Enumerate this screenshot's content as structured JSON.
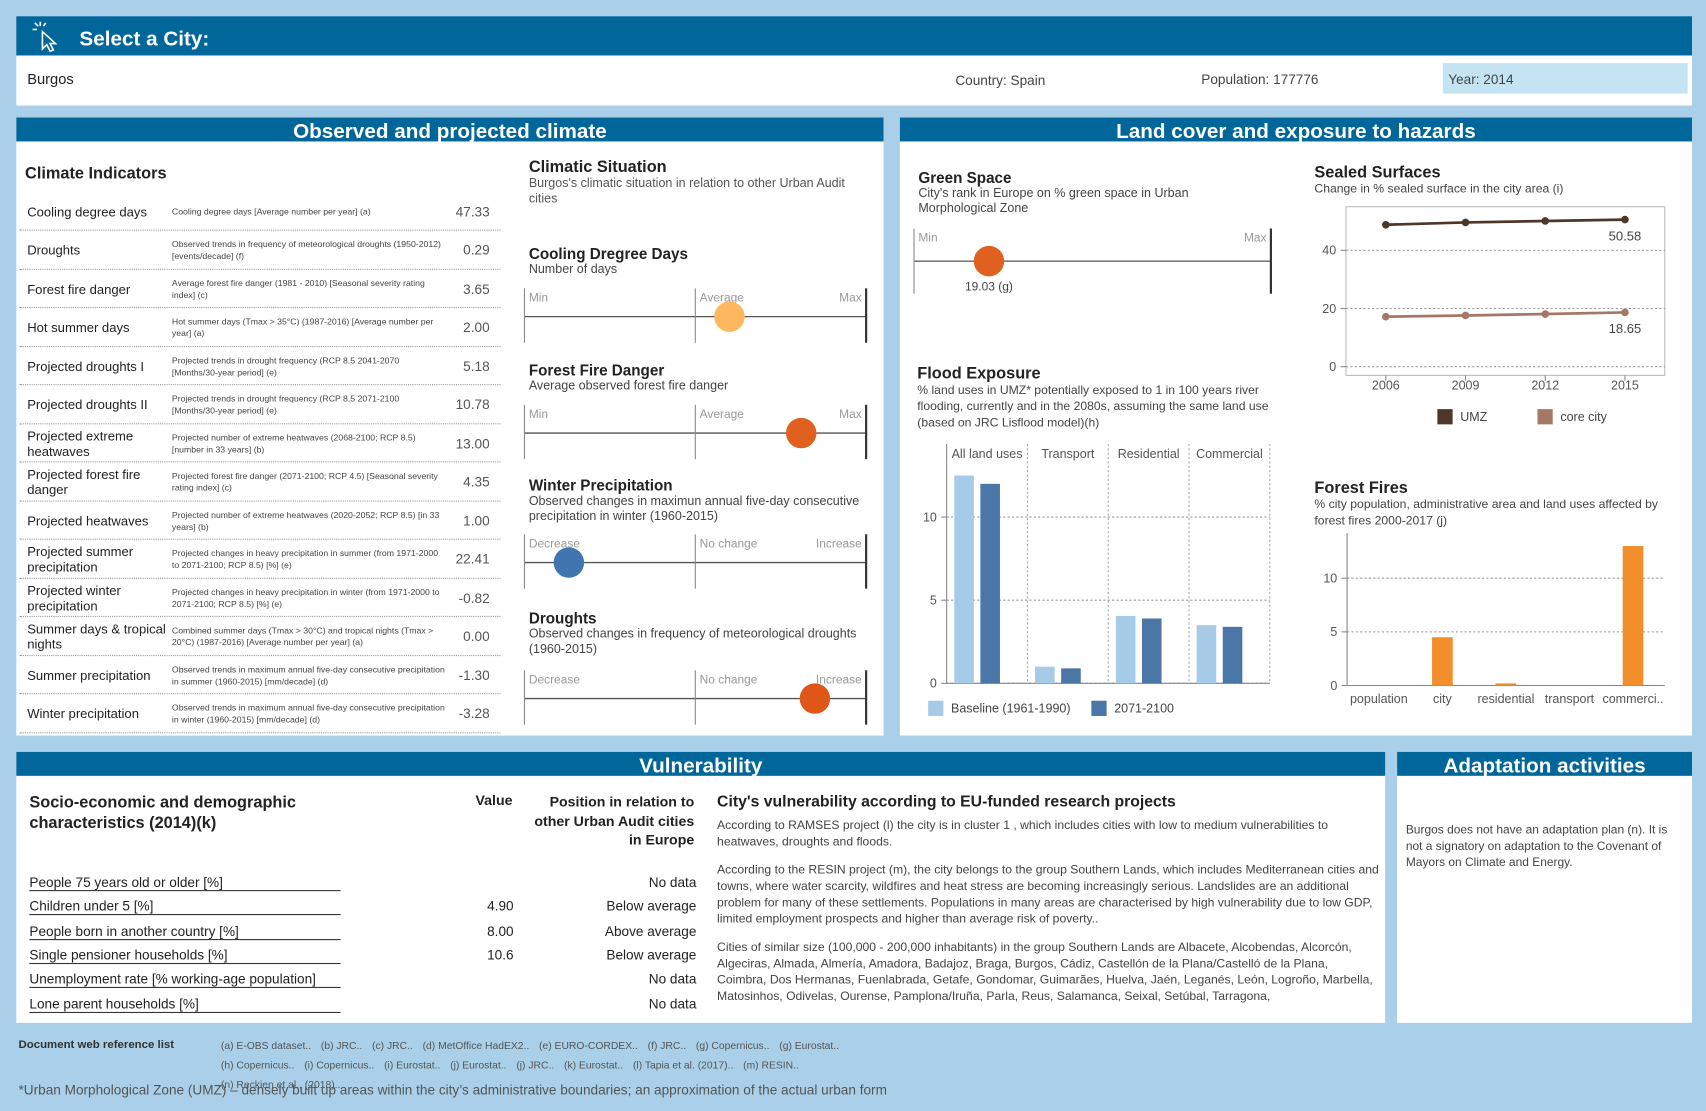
{
  "header": {
    "title": "Select a City:",
    "city": "Burgos",
    "country": "Country: Spain",
    "population": "Population: 177776",
    "year": "Year: 2014"
  },
  "climate": {
    "title": "Observed and projected climate",
    "indicators_title": "Climate Indicators",
    "indicators": [
      {
        "name": "Cooling degree days",
        "description": "Cooling degree days [Average number per year] (a)",
        "value": "47.33"
      },
      {
        "name": "Droughts",
        "description": "Observed trends in frequency of meteorological droughts (1950-2012) [events/decade] (f)",
        "value": "0.29"
      },
      {
        "name": "Forest fire danger",
        "description": "Average forest fire danger (1981 - 2010) [Seasonal severity rating index] (c)",
        "value": "3.65"
      },
      {
        "name": "Hot summer days",
        "description": "Hot summer days (Tmax > 35°C) (1987-2016) [Average number per year] (a)",
        "value": "2.00"
      },
      {
        "name": "Projected droughts I",
        "description": "Projected trends in drought frequency (RCP 8.5 2041-2070 [Months/30-year period] (e)",
        "value": "5.18"
      },
      {
        "name": "Projected droughts II",
        "description": "Projected trends in drought frequency (RCP 8.5 2071-2100 [Months/30-year period] (e)",
        "value": "10.78"
      },
      {
        "name": "Projected extreme heatwaves",
        "description": "Projected number of extreme heatwaves (2068-2100; RCP 8.5) [number in 33 years] (b)",
        "value": "13.00"
      },
      {
        "name": "Projected forest fire danger",
        "description": "Projected forest fire danger (2071-2100; RCP 4.5) [Seasonal severity rating index] (c)",
        "value": "4.35"
      },
      {
        "name": "Projected heatwaves",
        "description": "Projected number of extreme heatwaves (2020-2052; RCP 8.5) [in 33 years] (b)",
        "value": "1.00"
      },
      {
        "name": "Projected summer precipitation",
        "description": "Projected changes in heavy precipitation in summer (from 1971-2000 to 2071-2100; RCP 8.5) [%] (e)",
        "value": "22.41"
      },
      {
        "name": "Projected winter precipitation",
        "description": "Projected changes in heavy precipitation in winter (from 1971-2000 to 2071-2100; RCP 8.5) [%] (e)",
        "value": "-0.82"
      },
      {
        "name": "Summer days & tropical nights",
        "description": "Combined summer days (Tmax > 30°C) and tropical nights (Tmax > 20°C) (1987-2016) [Average number per year] (a)",
        "value": "0.00"
      },
      {
        "name": "Summer precipitation",
        "description": "Observed trends in maximum annual five-day consecutive precipitation in summer (1960-2015) [mm/decade] (d)",
        "value": "-1.30"
      },
      {
        "name": "Winter precipitation",
        "description": "Observed trends in maximum annual five-day consecutive precipitation in winter (1960-2015) [mm/decade] (d)",
        "value": "-3.28"
      }
    ],
    "situation": {
      "title": "Climatic Situation",
      "subtitle": "Burgos's climatic situation in relation to other Urban Audit cities",
      "sliders": [
        {
          "title": "Cooling Dregree Days",
          "subtitle": "Number of days",
          "labels": [
            "Min",
            "Average",
            "Max"
          ],
          "position": 0.6,
          "color": "#fdb75e"
        },
        {
          "title": "Forest Fire Danger",
          "subtitle": "Average observed forest fire danger",
          "labels": [
            "Min",
            "Average",
            "Max"
          ],
          "position": 0.81,
          "color": "#e0601f"
        },
        {
          "title": "Winter Precipitation",
          "subtitle": "Observed changes in maximun annual five-day consecutive precipitation in winter (1960-2015)",
          "labels": [
            "Decrease",
            "No change",
            "Increase"
          ],
          "position": 0.13,
          "color": "#3f76b0"
        },
        {
          "title": "Droughts",
          "subtitle": "Observed changes in frequency of meteorological droughts (1960-2015)",
          "labels": [
            "Decrease",
            "No change",
            "Increase"
          ],
          "position": 0.85,
          "color": "#e05518"
        }
      ]
    }
  },
  "land_cover": {
    "title": "Land cover and exposure to hazards",
    "green_space": {
      "title": "Green Space",
      "subtitle": "City's rank in Europe on % green space in Urban Morphological Zone",
      "labels": [
        "Min",
        "Max"
      ],
      "position": 0.21,
      "label": "19.03 (g)",
      "color": "#e0601f"
    }
  },
  "chart_data": [
    {
      "type": "line",
      "title": "Sealed Surfaces",
      "subtitle": "Change in % sealed surface in the city area (i)",
      "x": [
        2006,
        2009,
        2012,
        2015
      ],
      "xlim": [
        2004.5,
        2016.5
      ],
      "ylim": [
        -3,
        55
      ],
      "yticks": [
        0,
        20,
        40
      ],
      "grid": true,
      "series": [
        {
          "name": "UMZ",
          "color": "#4e3629",
          "values": [
            48.8,
            49.6,
            50.1,
            50.58
          ]
        },
        {
          "name": "core city",
          "color": "#a47864",
          "values": [
            17.2,
            17.6,
            18.1,
            18.65
          ]
        }
      ]
    },
    {
      "type": "bar",
      "title": "Flood Exposure",
      "subtitle": "% land uses in UMZ* potentially exposed to 1 in 100 years river flooding, currently and in the 2080s, assuming the same land use (based on JRC Lisflood model)(h)",
      "categories": [
        "All land uses",
        "Transport",
        "Residential",
        "Commercial"
      ],
      "ylim": [
        0,
        14.4
      ],
      "yticks": [
        0,
        5,
        10
      ],
      "grid": true,
      "series": [
        {
          "name": "Baseline (1961-1990)",
          "color": "#a6cbe8",
          "values": [
            12.5,
            1.0,
            4.05,
            3.5
          ]
        },
        {
          "name": "2071-2100",
          "color": "#4a76a8",
          "values": [
            12.0,
            0.9,
            3.9,
            3.4
          ]
        }
      ]
    },
    {
      "type": "bar",
      "title": "Forest Fires",
      "subtitle": "% city population, administrative area and land uses affected by forest fires 2000-2017 (j)",
      "categories": [
        "population",
        "city",
        "residential",
        "transport",
        "commerci.."
      ],
      "values": [
        0,
        4.5,
        0.2,
        0,
        13.0
      ],
      "color": "#f28e2b",
      "ylim": [
        0,
        14.2
      ],
      "yticks": [
        0,
        5,
        10
      ],
      "grid": true
    }
  ],
  "vulnerability": {
    "title": "Vulnerability",
    "table_title": "Socio-economic and demographic characteristics (2014)(k)",
    "value_header": "Value",
    "position_header": "Position in relation to other Urban Audit cities in Europe",
    "rows": [
      {
        "label": "People 75 years old or older [%]",
        "value": null,
        "position": "No data"
      },
      {
        "label": "Children under 5 [%]",
        "value": "4.90",
        "position": "Below average"
      },
      {
        "label": "People born in another country [%]",
        "value": "8.00",
        "position": "Above average"
      },
      {
        "label": "Single pensioner households [%]",
        "value": "10.6",
        "position": "Below average"
      },
      {
        "label": "Unemployment rate [% working-age population]",
        "value": null,
        "position": "No data"
      },
      {
        "label": "Lone parent households [%]",
        "value": null,
        "position": "No data"
      }
    ],
    "projects_title": "City's vulnerability according to EU-funded research projects",
    "paragraphs": [
      "According to RAMSES project (l) the city is in cluster 1 , which includes cities with low to medium vulnerabilities to heatwaves, droughts and floods.",
      "According to the RESIN project (m), the city belongs to the group Southern Lands, which includes Mediterranean cities and towns, where water scarcity, wildfires and heat stress are becoming increasingly serious. Landslides are an additional problem for many of these settlements. Populations in many areas are characterised by high vulnerability due to low GDP, limited employment prospects and higher than average risk of poverty..",
      "Cities of similar size (100,000 - 200,000 inhabitants) in the group Southern Lands  are Albacete, Alcobendas, Alcorcón, Algeciras, Almada, Almería, Amadora, Badajoz, Braga, Burgos, Cádiz, Castellón de la Plana/Castelló de la Plana, Coimbra, Dos Hermanas, Fuenlabrada, Getafe, Gondomar, Guimarães, Huelva, Jaén, Leganés, León, Logroño, Marbella, Matosinhos, Odivelas, Ourense, Pamplona/Iruña, Parla, Reus, Salamanca, Seixal, Setúbal, Tarragona,"
    ]
  },
  "adaptation": {
    "title": "Adaptation activities",
    "text": "Burgos does not have an adaptation plan (n). It is not a signatory on adaptation to the Covenant of Mayors on Climate and Energy."
  },
  "references": {
    "title": "Document web reference list",
    "items": [
      "(a) E-OBS dataset..",
      "(b) JRC..",
      "(c) JRC..",
      "(d) MetOffice HadEX2..",
      "(e) EURO-CORDEX..",
      "(f) JRC..",
      "(g) Copernicus..",
      "(g) Eurostat..",
      "(h) Copernicus..",
      "(i) Copernicus..",
      "(i) Eurostat..",
      "(j) Eurostat..",
      "(j) JRC..",
      "(k) Eurostat..",
      "(l) Tapia et al. (2017)..",
      "(m) RESIN..",
      "(n) Reckien et al., (2018).."
    ]
  },
  "footnote": "*Urban Morphological Zone (UMZ) – densely built up areas within the city’s administrative boundaries; an approximation of the actual urban form"
}
